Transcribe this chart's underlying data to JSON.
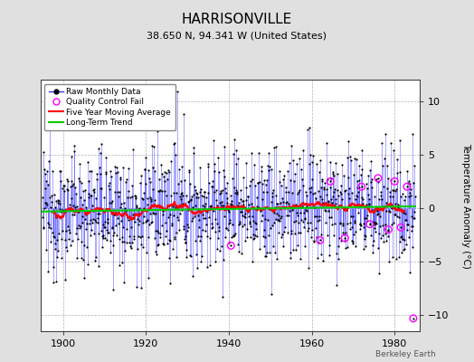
{
  "title": "HARRISONVILLE",
  "subtitle": "38.650 N, 94.341 W (United States)",
  "ylabel": "Temperature Anomaly (°C)",
  "credit": "Berkeley Earth",
  "year_start": 1895,
  "year_end": 1984,
  "ylim": [
    -11.5,
    12.0
  ],
  "yticks": [
    -10,
    -5,
    0,
    5,
    10
  ],
  "xticks": [
    1900,
    1920,
    1940,
    1960,
    1980
  ],
  "background_color": "#e0e0e0",
  "plot_bg_color": "#ffffff",
  "raw_line_color": "#3333ff",
  "raw_dot_color": "#000000",
  "qc_fail_color": "#ff00ff",
  "moving_avg_color": "#ff0000",
  "trend_color": "#00cc00",
  "seed": 12345,
  "noise_std": 2.8
}
